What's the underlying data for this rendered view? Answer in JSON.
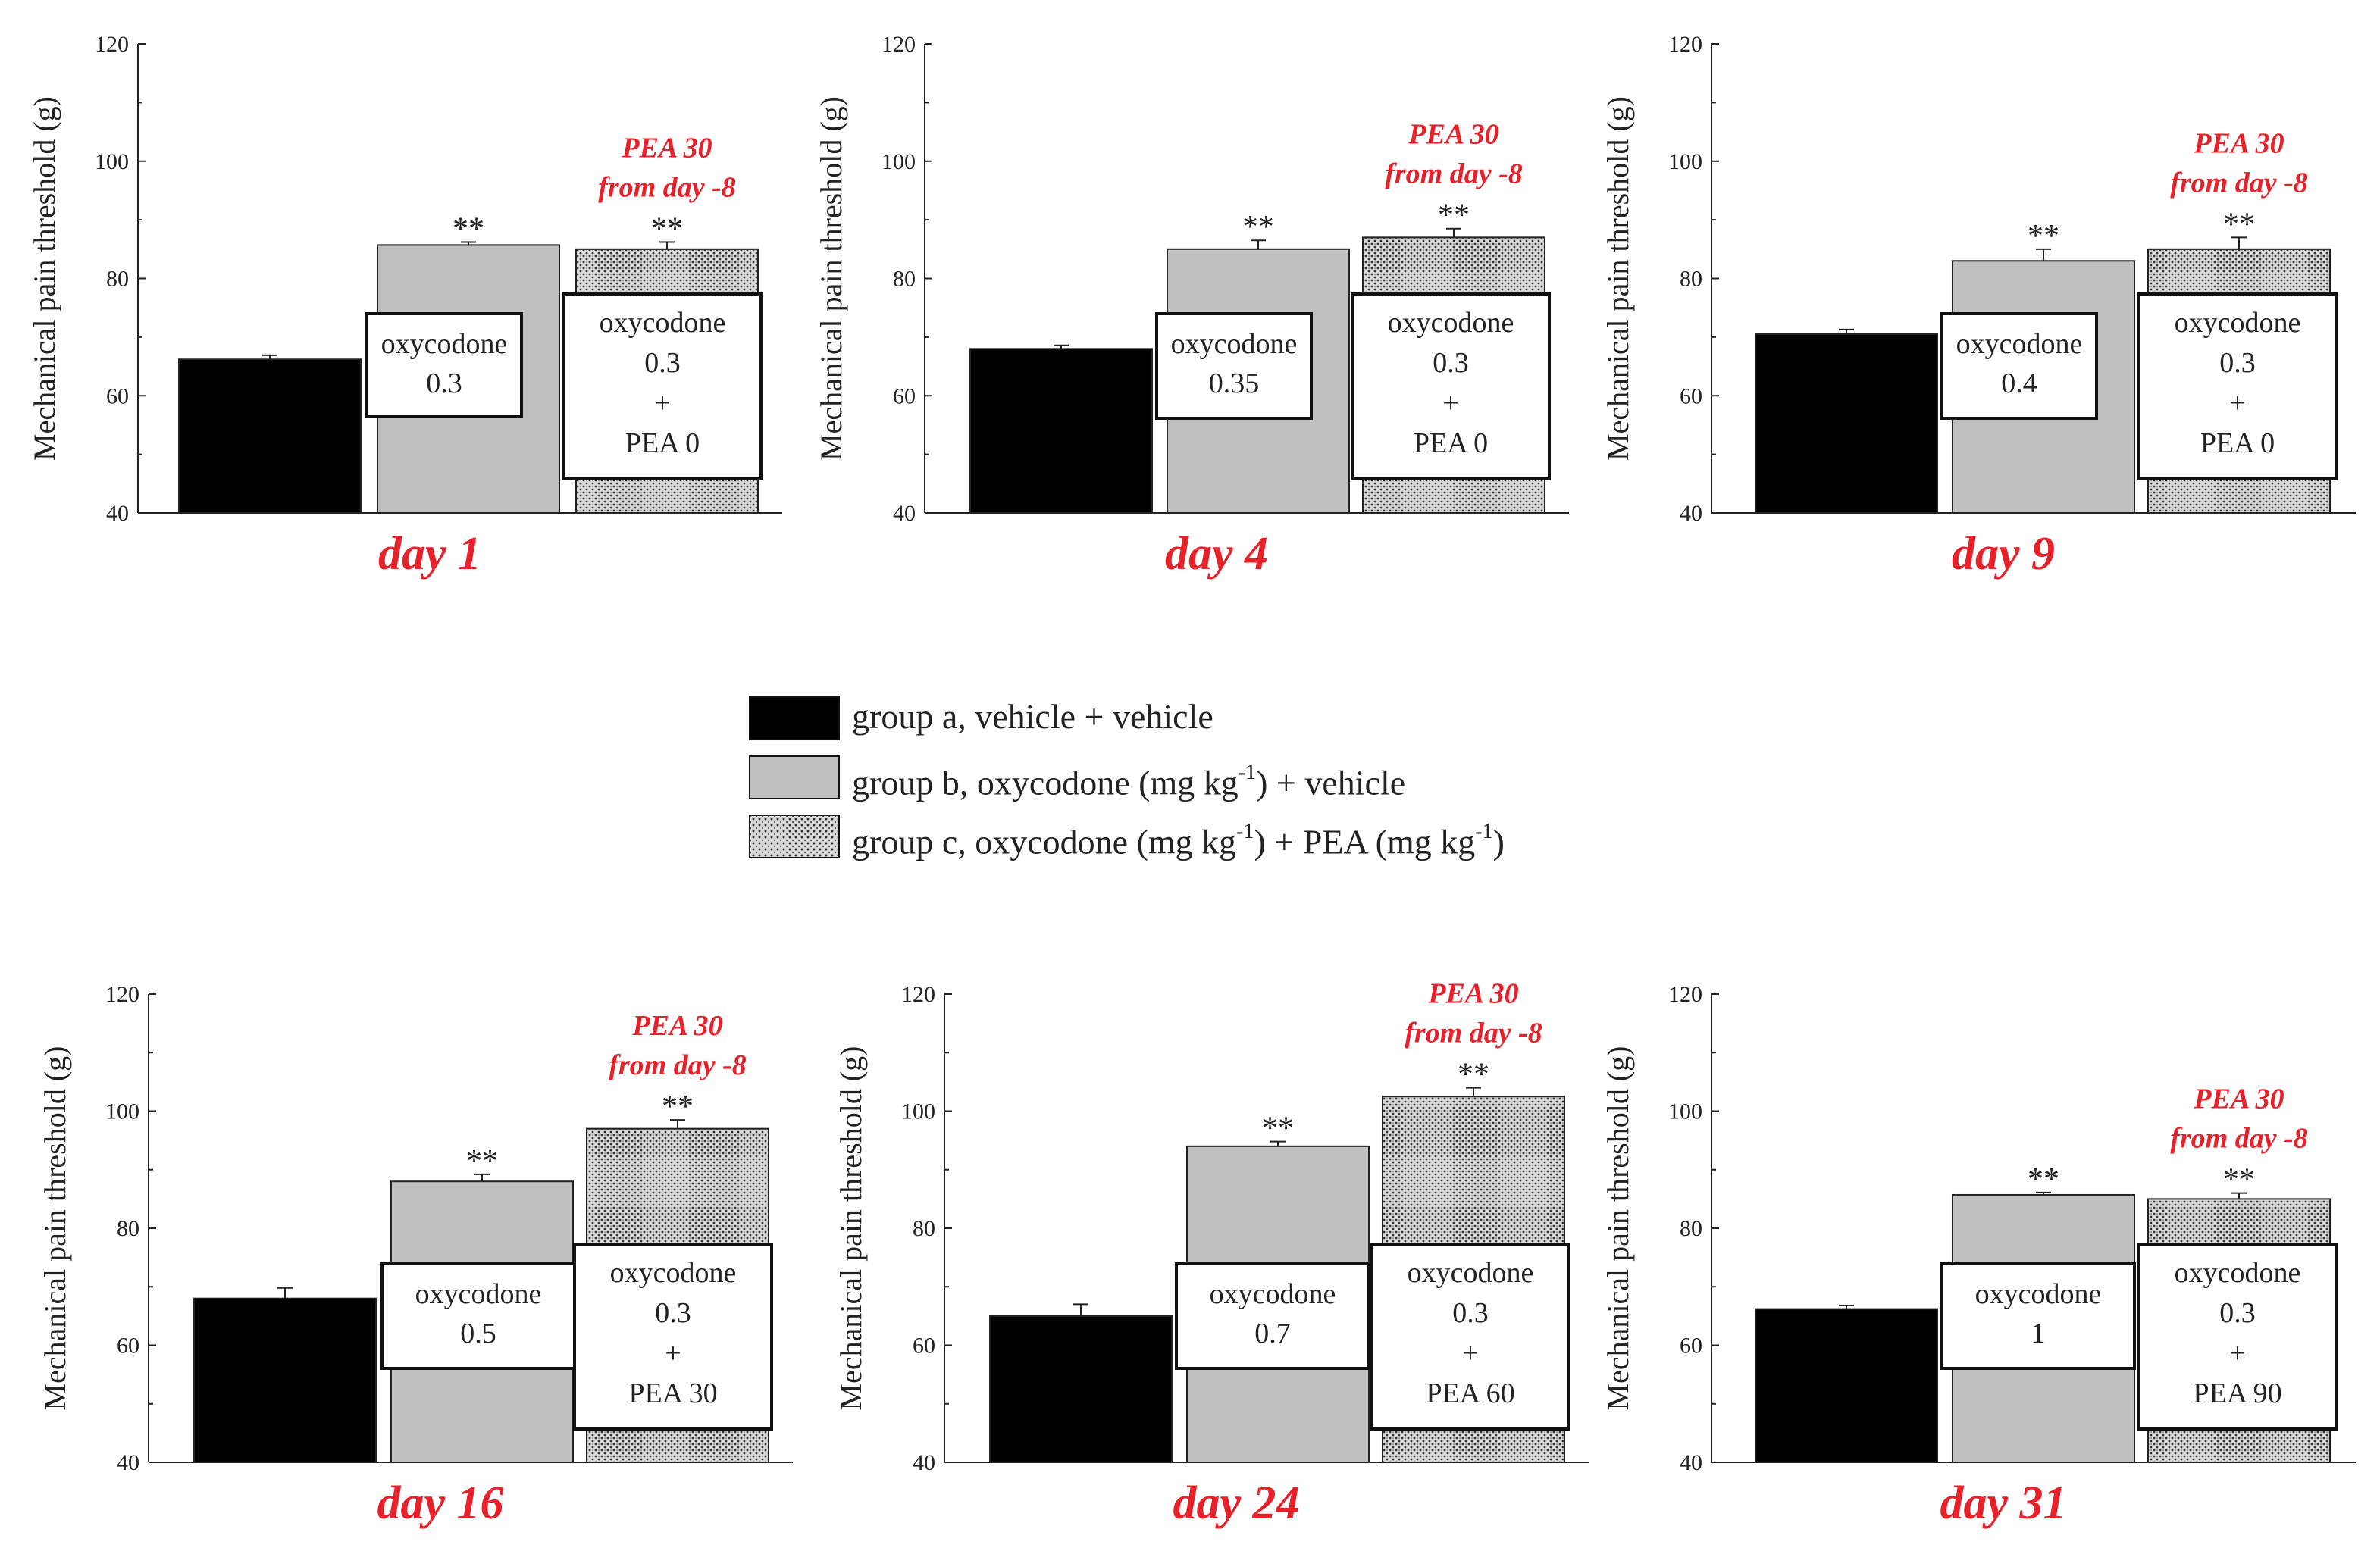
{
  "axis": {
    "ylabel": "Mechanical pain threshold (g)",
    "ylim": [
      40,
      120
    ],
    "yticks": [
      "40",
      "60",
      "80",
      "100",
      "120"
    ]
  },
  "colors": {
    "group_a": "#000000",
    "group_b": "#c0c0c0",
    "group_c": "#b8b8b8",
    "annotation": "#e8202a",
    "text": "#222222"
  },
  "annotation": {
    "line1": "PEA 30",
    "line2": "from day -8",
    "significance": "**"
  },
  "legend": {
    "items": [
      {
        "group": "a",
        "label": "group a, vehicle + vehicle"
      },
      {
        "group": "b",
        "text_before": "group b, oxycodone (mg kg",
        "sup1": "-1",
        "text_after": ") + vehicle"
      },
      {
        "group": "c",
        "text_before": "group c, oxycodone (mg kg",
        "sup1": "-1",
        "text_mid": ") + PEA (mg kg",
        "sup2": "-1",
        "text_after": ")"
      }
    ]
  },
  "chart_data": [
    {
      "type": "bar",
      "title": "day 1",
      "ylabel": "Mechanical pain threshold (g)",
      "ylim": [
        40,
        120
      ],
      "categories": [
        "group a",
        "group b",
        "group c"
      ],
      "values": [
        66.2,
        85.7,
        85.0
      ],
      "errors": [
        0.7,
        0.5,
        1.2
      ],
      "significance": [
        "",
        "**",
        "**"
      ],
      "labels": [
        [],
        [
          "oxycodone",
          "0.3"
        ],
        [
          "oxycodone",
          "0.3",
          "+",
          "PEA 0"
        ]
      ]
    },
    {
      "type": "bar",
      "title": "day 4",
      "ylabel": "Mechanical pain threshold (g)",
      "ylim": [
        40,
        120
      ],
      "categories": [
        "group a",
        "group b",
        "group c"
      ],
      "values": [
        68.0,
        85.0,
        87.0
      ],
      "errors": [
        0.6,
        1.5,
        1.5
      ],
      "significance": [
        "",
        "**",
        "**"
      ],
      "labels": [
        [],
        [
          "oxycodone",
          "0.35"
        ],
        [
          "oxycodone",
          "0.3",
          "+",
          "PEA 0"
        ]
      ]
    },
    {
      "type": "bar",
      "title": "day 9",
      "ylabel": "Mechanical pain threshold (g)",
      "ylim": [
        40,
        120
      ],
      "categories": [
        "group a",
        "group b",
        "group c"
      ],
      "values": [
        70.5,
        83.0,
        85.0
      ],
      "errors": [
        0.8,
        2.0,
        2.0
      ],
      "significance": [
        "",
        "**",
        "**"
      ],
      "labels": [
        [],
        [
          "oxycodone",
          "0.4"
        ],
        [
          "oxycodone",
          "0.3",
          "+",
          "PEA 0"
        ]
      ]
    },
    {
      "type": "bar",
      "title": "day 16",
      "ylabel": "Mechanical pain threshold (g)",
      "ylim": [
        40,
        120
      ],
      "categories": [
        "group a",
        "group b",
        "group c"
      ],
      "values": [
        68.0,
        88.0,
        97.0
      ],
      "errors": [
        1.8,
        1.2,
        1.5
      ],
      "significance": [
        "",
        "**",
        "**"
      ],
      "labels": [
        [],
        [
          "oxycodone",
          "0.5"
        ],
        [
          "oxycodone",
          "0.3",
          "+",
          "PEA 30"
        ]
      ]
    },
    {
      "type": "bar",
      "title": "day 24",
      "ylabel": "Mechanical pain threshold (g)",
      "ylim": [
        40,
        120
      ],
      "categories": [
        "group a",
        "group b",
        "group c"
      ],
      "values": [
        65.0,
        94.0,
        102.5
      ],
      "errors": [
        2.0,
        0.8,
        1.5
      ],
      "significance": [
        "",
        "**",
        "**"
      ],
      "labels": [
        [],
        [
          "oxycodone",
          "0.7"
        ],
        [
          "oxycodone",
          "0.3",
          "+",
          "PEA 60"
        ]
      ]
    },
    {
      "type": "bar",
      "title": "day 31",
      "ylabel": "Mechanical pain threshold (g)",
      "ylim": [
        40,
        120
      ],
      "categories": [
        "group a",
        "group b",
        "group c"
      ],
      "values": [
        66.2,
        85.7,
        85.0
      ],
      "errors": [
        0.6,
        0.4,
        1.0
      ],
      "significance": [
        "",
        "**",
        "**"
      ],
      "labels": [
        [],
        [
          "oxycodone",
          "1"
        ],
        [
          "oxycodone",
          "0.3",
          "+",
          "PEA 90"
        ]
      ]
    }
  ]
}
